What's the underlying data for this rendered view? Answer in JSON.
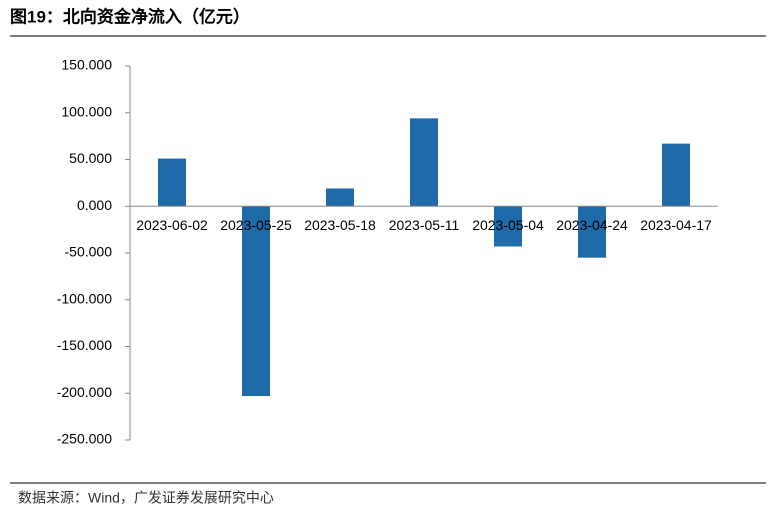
{
  "chart_data": {
    "type": "bar",
    "title": "图19：北向资金净流入（亿元）",
    "source": "数据来源：Wind，广发证券发展研究中心",
    "categories": [
      "2023-06-02",
      "2023-05-25",
      "2023-05-18",
      "2023-05-11",
      "2023-05-04",
      "2023-04-24",
      "2023-04-17"
    ],
    "values": [
      51,
      -203,
      19,
      94,
      -43,
      -55,
      67
    ],
    "color": "#1f6aa8",
    "ylim": [
      -250,
      150
    ],
    "yticks": [
      {
        "value": -250,
        "label": "-250.000"
      },
      {
        "value": -200,
        "label": "-200.000"
      },
      {
        "value": -150,
        "label": "-150.000"
      },
      {
        "value": -100,
        "label": "-100.000"
      },
      {
        "value": -50,
        "label": "-50.000"
      },
      {
        "value": 0,
        "label": "0.000"
      },
      {
        "value": 50,
        "label": "50.000"
      },
      {
        "value": 100,
        "label": "100.000"
      },
      {
        "value": 150,
        "label": "150.000"
      }
    ],
    "grid": false
  }
}
